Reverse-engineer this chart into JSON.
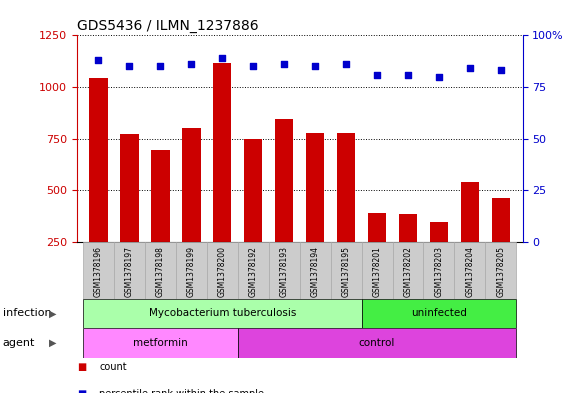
{
  "title": "GDS5436 / ILMN_1237886",
  "samples": [
    "GSM1378196",
    "GSM1378197",
    "GSM1378198",
    "GSM1378199",
    "GSM1378200",
    "GSM1378192",
    "GSM1378193",
    "GSM1378194",
    "GSM1378195",
    "GSM1378201",
    "GSM1378202",
    "GSM1378203",
    "GSM1378204",
    "GSM1378205"
  ],
  "counts": [
    1045,
    770,
    695,
    800,
    1115,
    750,
    845,
    775,
    775,
    390,
    385,
    345,
    540,
    460
  ],
  "percentiles": [
    88,
    85,
    85,
    86,
    89,
    85,
    86,
    85,
    86,
    81,
    81,
    80,
    84,
    83
  ],
  "bar_color": "#cc0000",
  "dot_color": "#0000cc",
  "ylim_left": [
    250,
    1250
  ],
  "ylim_right": [
    0,
    100
  ],
  "yticks_left": [
    250,
    500,
    750,
    1000,
    1250
  ],
  "yticks_right": [
    0,
    25,
    50,
    75,
    100
  ],
  "infection_groups": [
    {
      "label": "Mycobacterium tuberculosis",
      "start": 0,
      "end": 9,
      "color": "#aaffaa"
    },
    {
      "label": "uninfected",
      "start": 9,
      "end": 14,
      "color": "#44ee44"
    }
  ],
  "agent_groups": [
    {
      "label": "metformin",
      "start": 0,
      "end": 5,
      "color": "#ff88ff"
    },
    {
      "label": "control",
      "start": 5,
      "end": 14,
      "color": "#dd44dd"
    }
  ],
  "tick_label_bg": "#cccccc",
  "plot_bg_color": "#ffffff",
  "legend_count_color": "#cc0000",
  "legend_percentile_color": "#0000cc"
}
